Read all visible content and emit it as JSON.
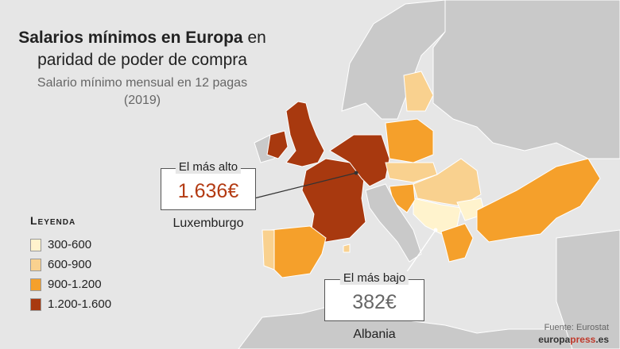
{
  "title": {
    "bold": "Salarios mínimos en Europa",
    "rest_inline": "en",
    "line2": "paridad de poder de compra"
  },
  "subtitle": {
    "line1": "Salario mínimo mensual en 12 pagas",
    "line2": "(2019)"
  },
  "legend": {
    "title": "Leyenda",
    "items": [
      {
        "label": "300-600",
        "color": "#fff3cd"
      },
      {
        "label": "600-900",
        "color": "#f9d18f"
      },
      {
        "label": "900-1.200",
        "color": "#f5a02b"
      },
      {
        "label": "1.200-1.600",
        "color": "#a8390f"
      }
    ]
  },
  "highest": {
    "tag": "El más alto",
    "value": "1.636€",
    "country": "Luxemburgo"
  },
  "lowest": {
    "tag": "El más bajo",
    "value": "382€",
    "country": "Albania"
  },
  "source": {
    "text": "Fuente: Eurostat",
    "brand_a": "europa",
    "brand_b": "press",
    "brand_c": ".es"
  },
  "colors": {
    "background": "#e6e6e6",
    "land_other": "#c9c9c9",
    "land_border": "#ffffff"
  }
}
